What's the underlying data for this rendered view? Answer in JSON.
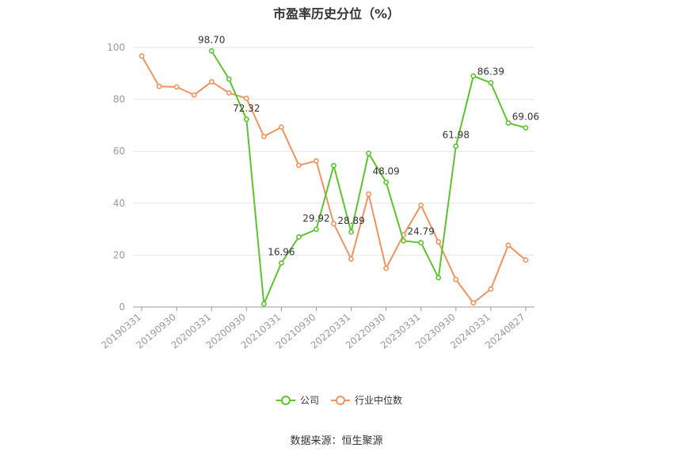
{
  "chart_data": {
    "type": "line",
    "title": "市盈率历史分位（%）",
    "xlabel": "",
    "ylabel": "",
    "ylim": [
      0,
      100
    ],
    "yticks": [
      0,
      20,
      40,
      60,
      80,
      100
    ],
    "x": [
      "20190331",
      "20190630",
      "20190930",
      "20191231",
      "20200331",
      "20200630",
      "20200930",
      "20201231",
      "20210331",
      "20210630",
      "20210930",
      "20211231",
      "20220331",
      "20220630",
      "20220930",
      "20221231",
      "20230331",
      "20230630",
      "20230930",
      "20231231",
      "20240331",
      "20240630",
      "20240827"
    ],
    "xtick_labels": [
      "20190331",
      "20190930",
      "20200331",
      "20200930",
      "20210331",
      "20210930",
      "20220331",
      "20220930",
      "20230331",
      "20230930",
      "20240331",
      "20240827"
    ],
    "grid": "horizontal",
    "legend_position": "bottom",
    "series": [
      {
        "name": "公司",
        "color": "#5cc42c",
        "values": [
          null,
          null,
          null,
          null,
          98.7,
          87.8,
          72.32,
          1.2,
          16.96,
          27.0,
          29.92,
          54.5,
          28.89,
          59.2,
          48.09,
          25.5,
          24.79,
          11.3,
          61.98,
          89.0,
          86.39,
          70.9,
          69.06
        ],
        "labels": [
          "",
          "",
          "",
          "",
          "98.70",
          "",
          "72.32",
          "",
          "16.96",
          "",
          "29.92",
          "",
          "28.89",
          "",
          "48.09",
          "",
          "24.79",
          "",
          "61.98",
          "",
          "86.39",
          "",
          "69.06"
        ]
      },
      {
        "name": "行业中位数",
        "color": "#f0935e",
        "values": [
          96.7,
          85.0,
          84.8,
          81.7,
          86.8,
          82.5,
          80.4,
          65.7,
          69.3,
          54.6,
          56.3,
          32.1,
          18.5,
          43.5,
          14.9,
          27.8,
          39.2,
          25.1,
          10.6,
          1.6,
          6.9,
          23.8,
          18.1
        ]
      }
    ]
  },
  "footer": {
    "source": "数据来源：恒生聚源"
  }
}
